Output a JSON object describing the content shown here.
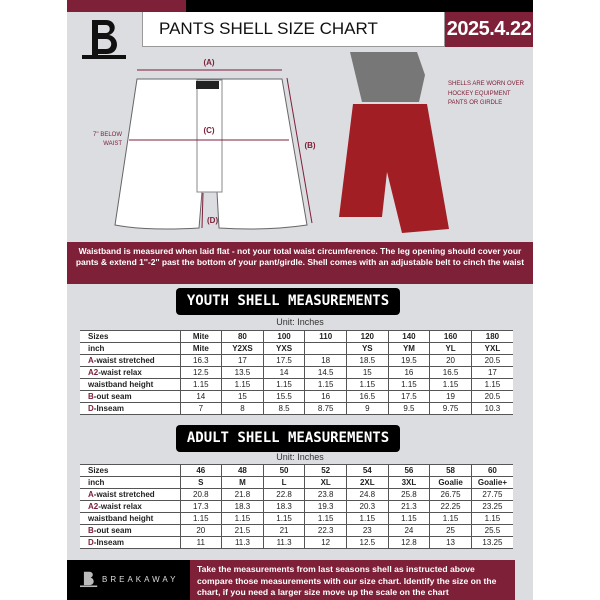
{
  "header": {
    "title": "PANTS SHELL SIZE CHART",
    "date": "2025.4.22"
  },
  "diagram": {
    "label_a": "(A)",
    "label_b": "(B)",
    "label_c": "(C)",
    "label_d": "(D)",
    "below_waist": "7'' BELOW WAIST",
    "note": "SHELLS ARE WORN OVER HOCKEY EQUIPMENT PANTS OR GIRDLE"
  },
  "info_band": "Waistband is measured when laid flat - not your total waist circumference. The leg opening should cover your pants & extend 1''-2'' past the bottom of your pant/girdle. Shell comes with an adjustable belt to cinch the waist",
  "youth": {
    "title": "YOUTH SHELL MEASUREMENTS",
    "unit": "Unit: Inches",
    "rows": [
      {
        "prefix": "",
        "label": "Sizes",
        "values": [
          "Mite",
          "80",
          "100",
          "110",
          "120",
          "140",
          "160",
          "180"
        ]
      },
      {
        "prefix": "",
        "label": "inch",
        "values": [
          "Mite",
          "Y2XS",
          "YXS",
          "",
          "YS",
          "YM",
          "YL",
          "YXL"
        ]
      },
      {
        "prefix": "A",
        "label": "-waist stretched",
        "values": [
          "16.3",
          "17",
          "17.5",
          "18",
          "18.5",
          "19.5",
          "20",
          "20.5"
        ]
      },
      {
        "prefix": "A2",
        "label": "-waist relax",
        "values": [
          "12.5",
          "13.5",
          "14",
          "14.5",
          "15",
          "16",
          "16.5",
          "17"
        ]
      },
      {
        "prefix": "",
        "label": "waistband height",
        "values": [
          "1.15",
          "1.15",
          "1.15",
          "1.15",
          "1.15",
          "1.15",
          "1.15",
          "1.15"
        ]
      },
      {
        "prefix": "B",
        "label": "-out seam",
        "values": [
          "14",
          "15",
          "15.5",
          "16",
          "16.5",
          "17.5",
          "19",
          "20.5"
        ]
      },
      {
        "prefix": "D",
        "label": "-Inseam",
        "values": [
          "7",
          "8",
          "8.5",
          "8.75",
          "9",
          "9.5",
          "9.75",
          "10.3"
        ]
      }
    ]
  },
  "adult": {
    "title": "ADULT SHELL MEASUREMENTS",
    "unit": "Unit: Inches",
    "rows": [
      {
        "prefix": "",
        "label": "Sizes",
        "values": [
          "46",
          "48",
          "50",
          "52",
          "54",
          "56",
          "58",
          "60"
        ]
      },
      {
        "prefix": "",
        "label": "inch",
        "values": [
          "S",
          "M",
          "L",
          "XL",
          "2XL",
          "3XL",
          "Goalie",
          "Goalie+"
        ]
      },
      {
        "prefix": "A",
        "label": "-waist stretched",
        "values": [
          "20.8",
          "21.8",
          "22.8",
          "23.8",
          "24.8",
          "25.8",
          "26.75",
          "27.75"
        ]
      },
      {
        "prefix": "A2",
        "label": "-waist relax",
        "values": [
          "17.3",
          "18.3",
          "18.3",
          "19.3",
          "20.3",
          "21.3",
          "22.25",
          "23.25"
        ]
      },
      {
        "prefix": "",
        "label": "waistband height",
        "values": [
          "1.15",
          "1.15",
          "1.15",
          "1.15",
          "1.15",
          "1.15",
          "1.15",
          "1.15"
        ]
      },
      {
        "prefix": "B",
        "label": "-out seam",
        "values": [
          "20",
          "21.5",
          "21",
          "22.3",
          "23",
          "24",
          "25",
          "25.5"
        ]
      },
      {
        "prefix": "D",
        "label": "-Inseam",
        "values": [
          "11",
          "11.3",
          "11.3",
          "12",
          "12.5",
          "12.8",
          "13",
          "13.25"
        ]
      }
    ]
  },
  "footer": {
    "brand": "BREAKAWAY",
    "text": "Take the measurements from last seasons shell as instructed above compare those measurements  with our size chart. Identify the size on the chart, if you need a larger size move up the scale on the chart"
  },
  "colors": {
    "accent": "#7d2038",
    "background": "#dcdde1",
    "shell_red": "#a11f24"
  }
}
